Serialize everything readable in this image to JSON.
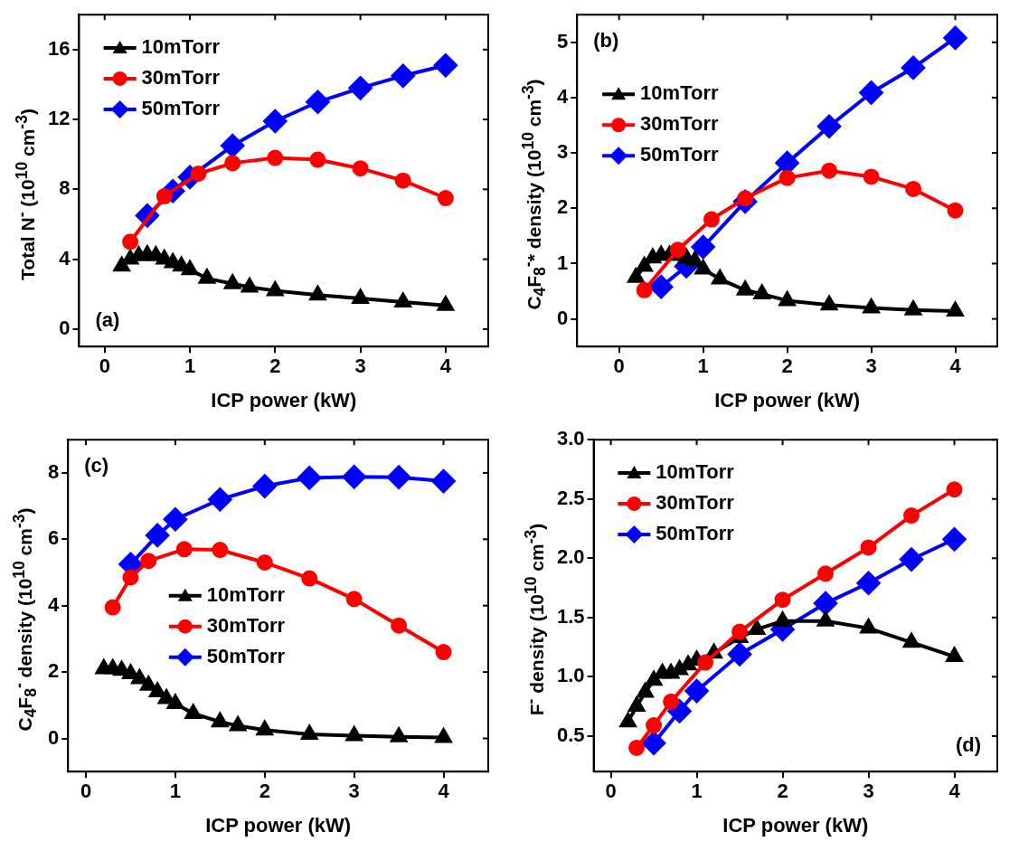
{
  "chart_data": [
    {
      "type": "line",
      "xlabel": "ICP power (kW)",
      "ylabel": "Total N$^{-}$ (10$^{10}$ cm$^{-3}$)",
      "xlim": [
        -0.3,
        4.5
      ],
      "ylim": [
        -1,
        18
      ],
      "xticks": [
        0,
        1,
        2,
        3,
        4
      ],
      "yticks": [
        0,
        4,
        8,
        12,
        16
      ],
      "grid": false,
      "legend": "top left",
      "annotations": [
        "(a)"
      ],
      "series": [
        {
          "name": "10mTorr",
          "color": "#000000",
          "marker": "triangle",
          "x": [
            0.2,
            0.3,
            0.4,
            0.5,
            0.6,
            0.7,
            0.8,
            0.9,
            1.0,
            1.2,
            1.5,
            1.7,
            2,
            2.5,
            3,
            3.5,
            4
          ],
          "values": [
            3.6,
            4.0,
            4.2,
            4.25,
            4.2,
            4.0,
            3.8,
            3.6,
            3.4,
            2.9,
            2.6,
            2.4,
            2.2,
            1.95,
            1.75,
            1.55,
            1.35
          ]
        },
        {
          "name": "30mTorr",
          "color": "#ff0000",
          "marker": "circle",
          "x": [
            0.3,
            0.7,
            1.1,
            1.5,
            2,
            2.5,
            3,
            3.5,
            4
          ],
          "values": [
            5.0,
            7.6,
            8.9,
            9.5,
            9.8,
            9.7,
            9.2,
            8.5,
            7.5
          ]
        },
        {
          "name": "50mTorr",
          "color": "#0000ff",
          "marker": "diamond",
          "x": [
            0.5,
            0.8,
            1.0,
            1.5,
            2,
            2.5,
            3,
            3.5,
            4
          ],
          "values": [
            6.5,
            7.9,
            8.7,
            10.5,
            11.9,
            13.0,
            13.8,
            14.5,
            15.1
          ]
        }
      ]
    },
    {
      "type": "line",
      "xlabel": "ICP power (kW)",
      "ylabel": "C$_{4}$F$_{8}$$^{-}$* density (10$^{10}$ cm$^{-3}$)",
      "xlim": [
        -0.5,
        4.5
      ],
      "ylim": [
        -0.5,
        5.5
      ],
      "xticks": [
        0,
        1,
        2,
        3,
        4
      ],
      "yticks": [
        0,
        1,
        2,
        3,
        4,
        5
      ],
      "grid": false,
      "legend": "top left",
      "annotations": [
        "(b)"
      ],
      "series": [
        {
          "name": "10mTorr",
          "color": "#000000",
          "marker": "triangle",
          "x": [
            0.2,
            0.3,
            0.4,
            0.5,
            0.6,
            0.7,
            0.8,
            0.9,
            1.0,
            1.2,
            1.5,
            1.7,
            2,
            2.5,
            3,
            3.5,
            4
          ],
          "values": [
            0.75,
            0.95,
            1.1,
            1.15,
            1.15,
            1.15,
            1.1,
            1.05,
            0.9,
            0.72,
            0.52,
            0.45,
            0.33,
            0.25,
            0.2,
            0.16,
            0.14
          ]
        },
        {
          "name": "30mTorr",
          "color": "#ff0000",
          "marker": "circle",
          "x": [
            0.3,
            0.7,
            1.1,
            1.5,
            2,
            2.5,
            3,
            3.5,
            4
          ],
          "values": [
            0.52,
            1.25,
            1.8,
            2.18,
            2.55,
            2.68,
            2.57,
            2.35,
            1.96
          ]
        },
        {
          "name": "50mTorr",
          "color": "#0000ff",
          "marker": "diamond",
          "x": [
            0.5,
            0.8,
            1.0,
            1.5,
            2,
            2.5,
            3,
            3.5,
            4
          ],
          "values": [
            0.58,
            0.95,
            1.3,
            2.12,
            2.82,
            3.48,
            4.09,
            4.54,
            5.08
          ]
        }
      ]
    },
    {
      "type": "line",
      "xlabel": "ICP power (kW)",
      "ylabel": "C$_{4}$F$_{8}$$^{-}$ density (10$^{10}$ cm$^{-3}$)",
      "xlim": [
        -0.2,
        4.5
      ],
      "ylim": [
        -1,
        9
      ],
      "xticks": [
        0,
        1,
        2,
        3,
        4
      ],
      "yticks": [
        0,
        2,
        4,
        6,
        8
      ],
      "grid": false,
      "legend": "center",
      "annotations": [
        "(c)"
      ],
      "series": [
        {
          "name": "10mTorr",
          "color": "#000000",
          "marker": "triangle",
          "x": [
            0.2,
            0.3,
            0.4,
            0.5,
            0.6,
            0.7,
            0.8,
            0.9,
            1.0,
            1.2,
            1.5,
            1.7,
            2,
            2.5,
            3,
            3.5,
            4
          ],
          "values": [
            2.1,
            2.1,
            2.05,
            1.95,
            1.8,
            1.6,
            1.4,
            1.2,
            1.05,
            0.75,
            0.5,
            0.38,
            0.25,
            0.12,
            0.08,
            0.05,
            0.03
          ]
        },
        {
          "name": "30mTorr",
          "color": "#ff0000",
          "marker": "circle",
          "x": [
            0.3,
            0.5,
            0.7,
            1.1,
            1.5,
            2,
            2.5,
            3,
            3.5,
            4
          ],
          "values": [
            3.95,
            4.85,
            5.35,
            5.7,
            5.68,
            5.3,
            4.82,
            4.2,
            3.4,
            2.6
          ]
        },
        {
          "name": "50mTorr",
          "color": "#0000ff",
          "marker": "diamond",
          "x": [
            0.5,
            0.8,
            1.0,
            1.5,
            2,
            2.5,
            3,
            3.5,
            4
          ],
          "values": [
            5.25,
            6.12,
            6.6,
            7.2,
            7.6,
            7.85,
            7.88,
            7.87,
            7.75
          ]
        }
      ]
    },
    {
      "type": "line",
      "xlabel": "ICP power (kW)",
      "ylabel": "F$^{-}$ density (10$^{10}$ cm$^{-3}$)",
      "xlim": [
        -0.2,
        4.5
      ],
      "ylim": [
        0.2,
        3.0
      ],
      "xticks": [
        0,
        1,
        2,
        3,
        4
      ],
      "yticks": [
        0.5,
        {
          "value": 1,
          "label": "1.0"
        },
        1.5,
        {
          "value": 2,
          "label": "2.0"
        },
        2.5,
        {
          "value": 3,
          "label": "3.0"
        }
      ],
      "grid": false,
      "legend": "top left",
      "annotations": [
        "(d)"
      ],
      "series": [
        {
          "name": "10mTorr",
          "color": "#000000",
          "marker": "triangle",
          "x": [
            0.2,
            0.3,
            0.4,
            0.5,
            0.6,
            0.7,
            0.8,
            0.9,
            1.0,
            1.2,
            1.5,
            1.7,
            2,
            2.5,
            3,
            3.5,
            4
          ],
          "values": [
            0.62,
            0.75,
            0.87,
            0.97,
            1.03,
            1.03,
            1.06,
            1.1,
            1.14,
            1.2,
            1.33,
            1.4,
            1.47,
            1.47,
            1.41,
            1.29,
            1.17
          ]
        },
        {
          "name": "30mTorr",
          "color": "#ff0000",
          "marker": "circle",
          "x": [
            0.3,
            0.5,
            0.7,
            1.1,
            1.5,
            2,
            2.5,
            3,
            3.5,
            4
          ],
          "values": [
            0.4,
            0.59,
            0.79,
            1.12,
            1.38,
            1.65,
            1.87,
            2.09,
            2.36,
            2.58
          ]
        },
        {
          "name": "50mTorr",
          "color": "#0000ff",
          "marker": "diamond",
          "x": [
            0.5,
            0.8,
            1.0,
            1.5,
            2,
            2.5,
            3,
            3.5,
            4
          ],
          "values": [
            0.44,
            0.71,
            0.88,
            1.19,
            1.4,
            1.62,
            1.79,
            1.99,
            2.16
          ]
        }
      ]
    }
  ]
}
